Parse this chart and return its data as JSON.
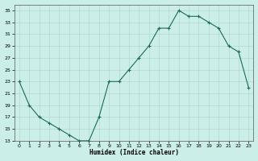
{
  "x": [
    0,
    1,
    2,
    3,
    4,
    5,
    6,
    7,
    8,
    9,
    10,
    11,
    12,
    13,
    14,
    15,
    16,
    17,
    18,
    19,
    20,
    21,
    22,
    23
  ],
  "y": [
    23,
    19,
    17,
    16,
    15,
    14,
    13,
    13,
    17,
    23,
    23,
    25,
    27,
    29,
    32,
    32,
    35,
    34,
    34,
    33,
    32,
    29,
    28,
    22
  ],
  "xlabel": "Humidex (Indice chaleur)",
  "line_color": "#1a6b5a",
  "marker": "P",
  "bg_color": "#cceee8",
  "grid_color": "#b0d8d0",
  "ylim": [
    13,
    36
  ],
  "xlim": [
    -0.5,
    23.5
  ],
  "yticks": [
    13,
    15,
    17,
    19,
    21,
    23,
    25,
    27,
    29,
    31,
    33,
    35
  ],
  "xticks": [
    0,
    1,
    2,
    3,
    4,
    5,
    6,
    7,
    8,
    9,
    10,
    11,
    12,
    13,
    14,
    15,
    16,
    17,
    18,
    19,
    20,
    21,
    22,
    23
  ]
}
